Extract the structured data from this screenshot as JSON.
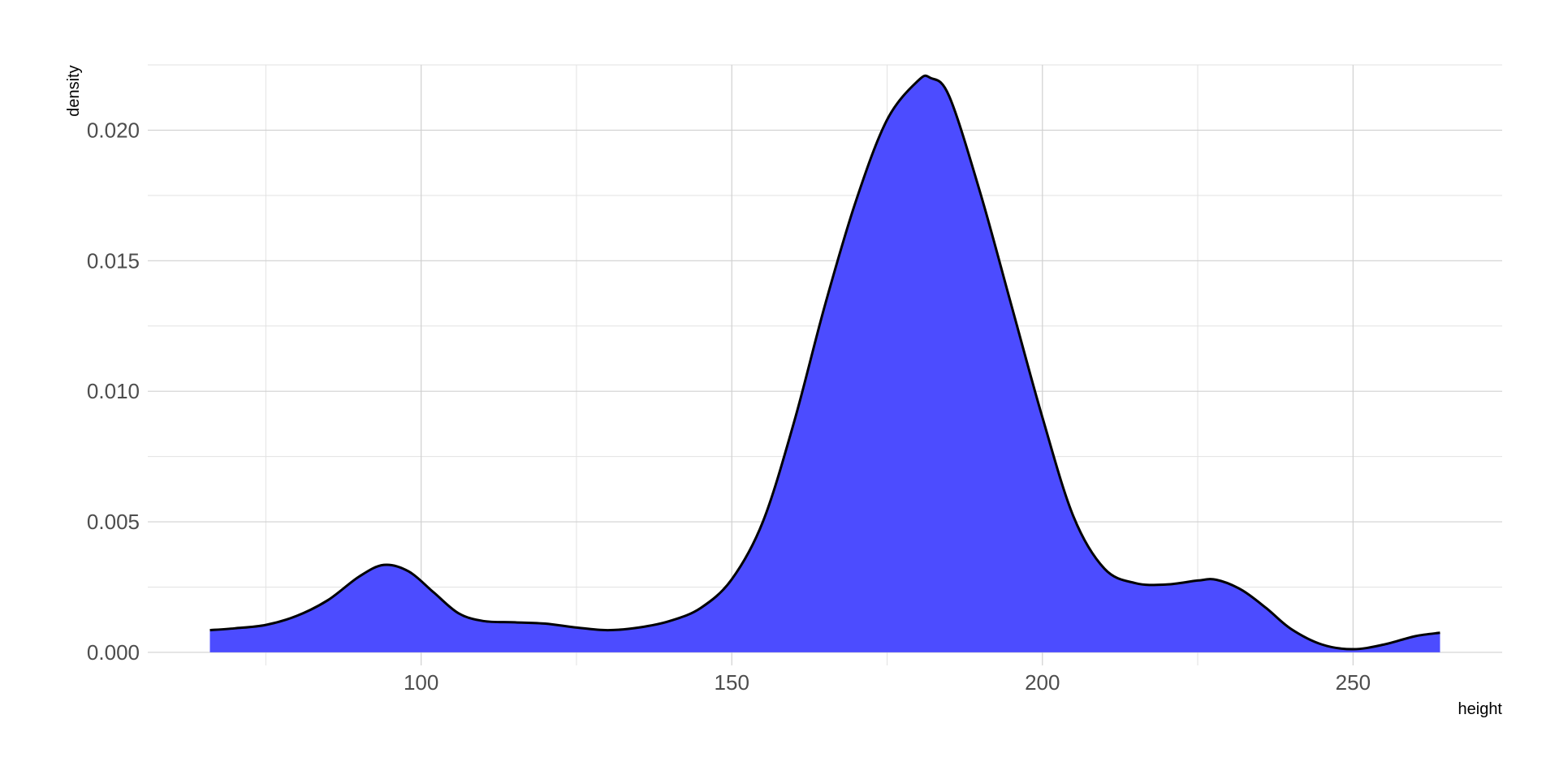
{
  "chart_data": {
    "type": "area",
    "subtype": "density",
    "title": "",
    "xlabel": "height",
    "ylabel": "density",
    "xlim": [
      56,
      274
    ],
    "ylim": [
      -0.0005,
      0.0225
    ],
    "x_ticks": [
      100,
      150,
      200,
      250
    ],
    "x_tick_labels": [
      "100",
      "150",
      "200",
      "250"
    ],
    "y_ticks": [
      0.0,
      0.005,
      0.01,
      0.015,
      0.02
    ],
    "y_tick_labels": [
      "0.000",
      "0.005",
      "0.010",
      "0.015",
      "0.020"
    ],
    "x_minor_ticks": [
      75,
      125,
      175,
      225
    ],
    "y_minor_ticks": [
      0.0025,
      0.0075,
      0.0125,
      0.0175,
      0.0225
    ],
    "grid": true,
    "legend": "none",
    "fill_color": "#4C4CFF",
    "line_color": "#000000",
    "series": [
      {
        "x": [
          66,
          70,
          75,
          80,
          85,
          90,
          94,
          98,
          102,
          106,
          110,
          115,
          120,
          125,
          130,
          135,
          140,
          145,
          150,
          155,
          160,
          165,
          170,
          175,
          180,
          182,
          185,
          190,
          195,
          200,
          205,
          210,
          215,
          220,
          225,
          228,
          232,
          236,
          240,
          245,
          250,
          255,
          260,
          264
        ],
        "y": [
          0.00085,
          0.00092,
          0.00105,
          0.0014,
          0.002,
          0.0029,
          0.00335,
          0.0031,
          0.0023,
          0.0015,
          0.0012,
          0.00115,
          0.0011,
          0.00095,
          0.00085,
          0.00095,
          0.0012,
          0.0017,
          0.0028,
          0.005,
          0.0088,
          0.0133,
          0.0173,
          0.0204,
          0.0219,
          0.022,
          0.0213,
          0.0176,
          0.0133,
          0.009,
          0.0052,
          0.0032,
          0.00265,
          0.0026,
          0.00275,
          0.00278,
          0.0024,
          0.0017,
          0.0009,
          0.0003,
          0.00012,
          0.0003,
          0.00062,
          0.00075
        ]
      }
    ]
  }
}
